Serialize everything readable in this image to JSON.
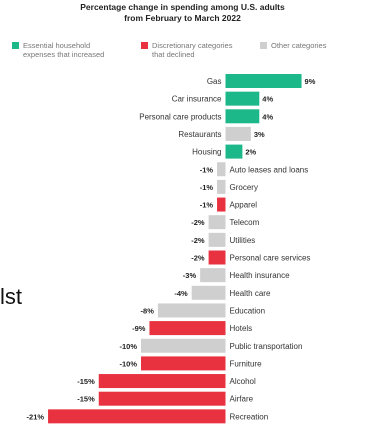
{
  "title_line1": "Percentage change in spending among U.S. adults",
  "title_line2": "from February to March 2022",
  "stray_text": "lst",
  "colors": {
    "increased": "#1db88a",
    "declined": "#e8323f",
    "other": "#cfcfcf"
  },
  "legend": [
    {
      "key": "increased",
      "line1": "Essential household",
      "line2": "expenses that increased"
    },
    {
      "key": "declined",
      "line1": "Discretionary categories",
      "line2": "that declined"
    },
    {
      "key": "other",
      "line1": "Other categories",
      "line2": ""
    }
  ],
  "chart_data": {
    "type": "bar",
    "orientation": "horizontal",
    "title": "Percentage change in spending among U.S. adults from February to March 2022",
    "categories": [
      "Gas",
      "Car insurance",
      "Personal care products",
      "Restaurants",
      "Housing",
      "Auto leases and loans",
      "Grocery",
      "Apparel",
      "Telecom",
      "Utilities",
      "Personal care services",
      "Health insurance",
      "Health care",
      "Education",
      "Hotels",
      "Public transportation",
      "Furniture",
      "Alcohol",
      "Airfare",
      "Recreation"
    ],
    "values": [
      9,
      4,
      4,
      3,
      2,
      -1,
      -1,
      -1,
      -2,
      -2,
      -2,
      -3,
      -4,
      -8,
      -9,
      -10,
      -10,
      -15,
      -15,
      -21
    ],
    "labels": [
      "9%",
      "4%",
      "4%",
      "3%",
      "2%",
      "-1%",
      "-1%",
      "-1%",
      "-2%",
      "-2%",
      "-2%",
      "-3%",
      "-4%",
      "-8%",
      "-9%",
      "-10%",
      "-10%",
      "-15%",
      "-15%",
      "-21%"
    ],
    "groups": [
      "increased",
      "increased",
      "increased",
      "other",
      "increased",
      "other",
      "other",
      "declined",
      "other",
      "other",
      "declined",
      "other",
      "other",
      "other",
      "declined",
      "other",
      "declined",
      "declined",
      "declined",
      "declined"
    ],
    "xlabel": "",
    "ylabel": "",
    "grid": false
  }
}
